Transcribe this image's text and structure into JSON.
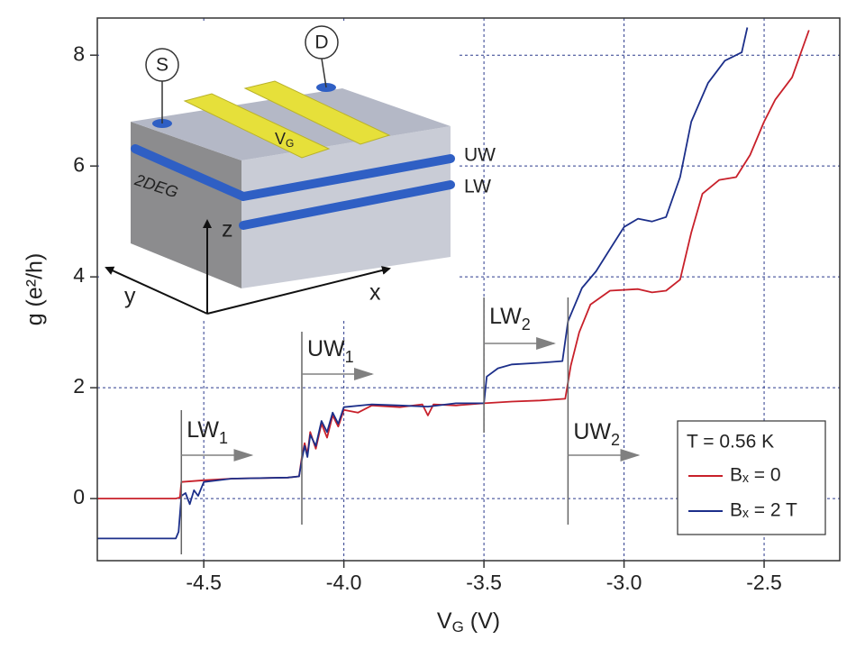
{
  "chart_data": {
    "type": "line",
    "xlabel": {
      "text": "V",
      "sub": "G",
      "rest": " (V)"
    },
    "ylabel": "g (e²/h)",
    "xlim": [
      -4.88,
      -2.23
    ],
    "ylim": [
      -1.12,
      8.67
    ],
    "xticks": [
      {
        "value": -4.5,
        "label": "-4.5"
      },
      {
        "value": -4.0,
        "label": "-4.0"
      },
      {
        "value": -3.5,
        "label": "-3.5"
      },
      {
        "value": -3.0,
        "label": "-3.0"
      },
      {
        "value": -2.5,
        "label": "-2.5"
      }
    ],
    "yticks": [
      0,
      2,
      4,
      6,
      8
    ],
    "grid": true,
    "legend_title": "T = 0.56 K",
    "legend": "lower right",
    "series": [
      {
        "name": "Bₓ = 0",
        "color": "#c8202a",
        "x": [
          -4.88,
          -4.6,
          -4.585,
          -4.58,
          -4.5,
          -4.4,
          -4.2,
          -4.16,
          -4.15,
          -4.14,
          -4.13,
          -4.12,
          -4.1,
          -4.08,
          -4.06,
          -4.04,
          -4.02,
          -4.0,
          -3.95,
          -3.9,
          -3.8,
          -3.72,
          -3.7,
          -3.68,
          -3.6,
          -3.5,
          -3.4,
          -3.3,
          -3.21,
          -3.19,
          -3.16,
          -3.12,
          -3.05,
          -2.95,
          -2.9,
          -2.85,
          -2.8,
          -2.76,
          -2.72,
          -2.66,
          -2.6,
          -2.55,
          -2.5,
          -2.46,
          -2.4,
          -2.34
        ],
        "values": [
          0,
          0,
          0.02,
          0.3,
          0.33,
          0.36,
          0.38,
          0.4,
          0.75,
          1.0,
          0.8,
          1.2,
          0.9,
          1.35,
          1.1,
          1.5,
          1.3,
          1.6,
          1.55,
          1.68,
          1.65,
          1.7,
          1.5,
          1.7,
          1.68,
          1.72,
          1.75,
          1.77,
          1.8,
          2.4,
          3.0,
          3.5,
          3.75,
          3.78,
          3.72,
          3.75,
          3.95,
          4.8,
          5.5,
          5.75,
          5.8,
          6.2,
          6.8,
          7.2,
          7.6,
          8.45
        ]
      },
      {
        "name": "Bₓ = 2 T",
        "color": "#1c2f8a",
        "x": [
          -4.88,
          -4.6,
          -4.59,
          -4.58,
          -4.565,
          -4.55,
          -4.535,
          -4.52,
          -4.5,
          -4.4,
          -4.2,
          -4.16,
          -4.15,
          -4.14,
          -4.13,
          -4.12,
          -4.1,
          -4.08,
          -4.06,
          -4.04,
          -4.02,
          -4.0,
          -3.9,
          -3.8,
          -3.7,
          -3.6,
          -3.5,
          -3.49,
          -3.45,
          -3.4,
          -3.3,
          -3.22,
          -3.2,
          -3.15,
          -3.1,
          -3.05,
          -3.0,
          -2.95,
          -2.9,
          -2.85,
          -2.8,
          -2.76,
          -2.7,
          -2.64,
          -2.58,
          -2.56
        ],
        "values": [
          -0.72,
          -0.72,
          -0.6,
          0.05,
          0.1,
          -0.1,
          0.15,
          0.05,
          0.3,
          0.36,
          0.38,
          0.4,
          0.7,
          0.95,
          0.75,
          1.15,
          0.95,
          1.4,
          1.2,
          1.55,
          1.35,
          1.65,
          1.7,
          1.68,
          1.66,
          1.72,
          1.72,
          2.2,
          2.35,
          2.42,
          2.45,
          2.48,
          3.2,
          3.8,
          4.1,
          4.5,
          4.9,
          5.05,
          5.0,
          5.08,
          5.8,
          6.8,
          7.5,
          7.9,
          8.05,
          8.5
        ]
      }
    ],
    "annotations": [
      {
        "text": "LW",
        "sub": "1",
        "x": -4.58
      },
      {
        "text": "UW",
        "sub": "1",
        "x": -4.15
      },
      {
        "text": "LW",
        "sub": "2",
        "x": -3.5
      },
      {
        "text": "UW",
        "sub": "2",
        "x": -3.2
      }
    ]
  },
  "inset": {
    "source": "S",
    "drain": "D",
    "gate": {
      "text": "V",
      "sub": "G"
    },
    "upper_wire": "UW",
    "lower_wire": "LW",
    "layer": "2DEG",
    "axis_z": "z",
    "axis_y": "y",
    "axis_x": "x"
  }
}
